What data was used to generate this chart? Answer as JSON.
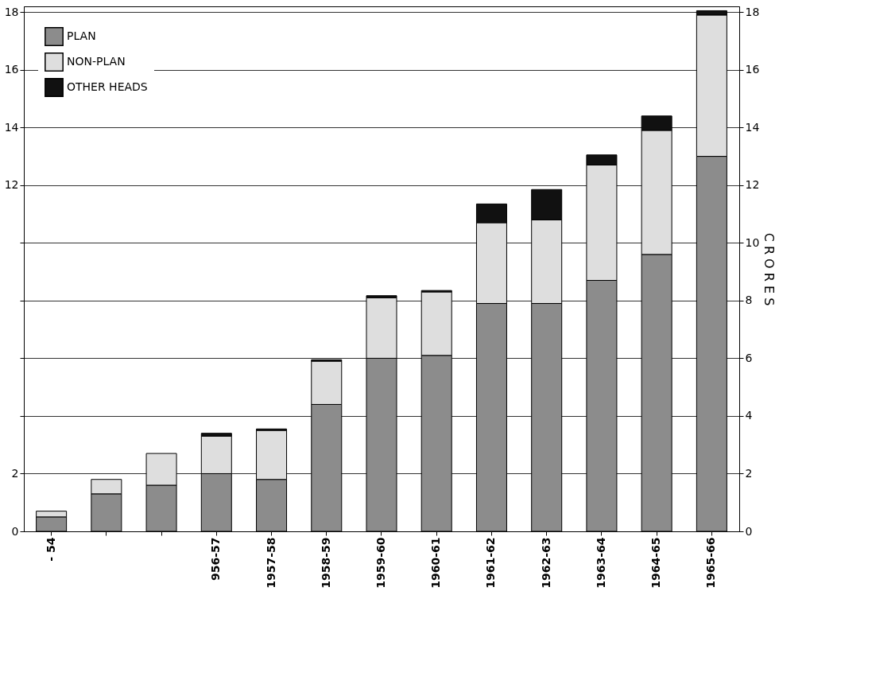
{
  "chart_data": {
    "type": "bar",
    "stacked": true,
    "categories": [
      "- 54",
      null,
      null,
      "956-57",
      "1957-58",
      "1958-59",
      "1959-60",
      "1960-61",
      "1961-62",
      "1962-63",
      "1963-64",
      "1964-65",
      "1965-66"
    ],
    "series": [
      {
        "name": "PLAN",
        "color": "#8c8c8c",
        "values": [
          0.5,
          1.3,
          1.6,
          2.0,
          1.8,
          4.4,
          6.0,
          6.1,
          7.9,
          7.9,
          8.7,
          9.6,
          13.0
        ]
      },
      {
        "name": "NON-PLAN",
        "color": "#dedede",
        "values": [
          0.2,
          0.5,
          1.1,
          1.3,
          1.7,
          1.5,
          2.1,
          2.2,
          2.8,
          2.9,
          4.0,
          4.3,
          4.9
        ]
      },
      {
        "name": "OTHER HEADS",
        "color": "#111111",
        "values": [
          null,
          null,
          null,
          0.1,
          0.05,
          0.05,
          0.07,
          0.05,
          0.65,
          1.05,
          0.35,
          0.5,
          0.15
        ]
      }
    ],
    "ylim": [
      0,
      18.2
    ],
    "yticks": [
      0,
      2,
      {
        "value": 4,
        "label": null
      },
      {
        "value": 6,
        "label": null
      },
      {
        "value": 8,
        "label": null
      },
      {
        "value": 10,
        "label": null
      },
      12,
      14,
      16,
      18
    ],
    "y2lim": [
      0,
      18.2
    ],
    "y2ticks": [
      0,
      2,
      4,
      6,
      8,
      10,
      12,
      14,
      16,
      18
    ],
    "y2label": "C R O R E S",
    "grid": "y",
    "legend": "top left"
  }
}
